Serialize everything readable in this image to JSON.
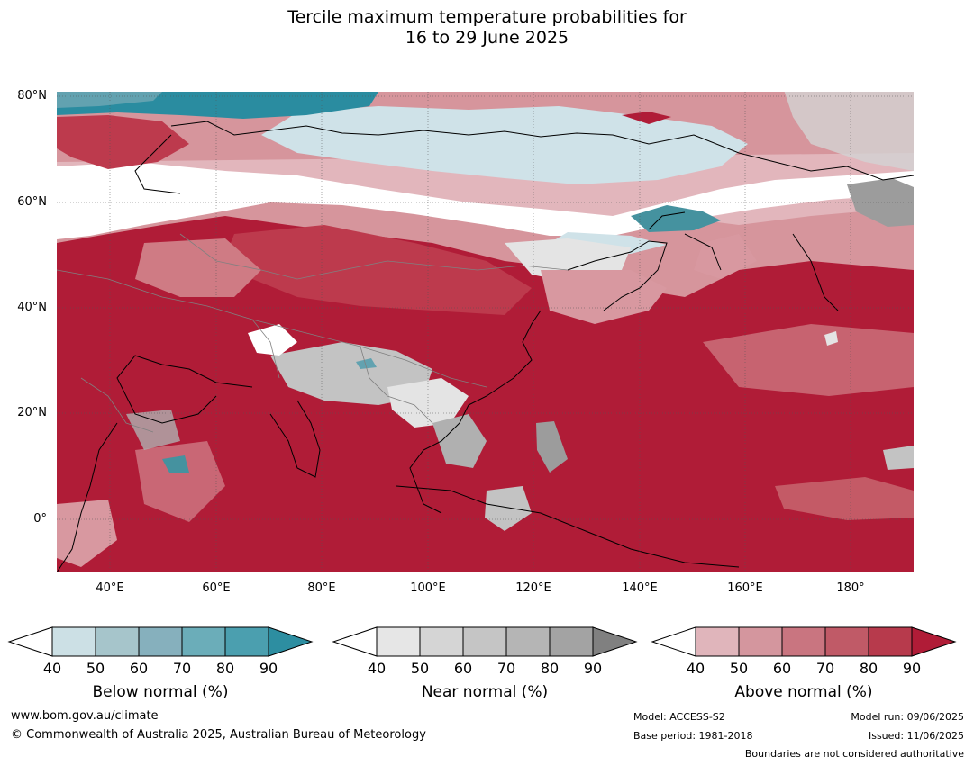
{
  "title": {
    "line1": "Tercile maximum temperature probabilities for",
    "line2": "16 to 29 June 2025"
  },
  "map": {
    "lat_labels": [
      "80°N",
      "60°N",
      "40°N",
      "20°N",
      "0°"
    ],
    "lon_labels": [
      "40°E",
      "60°E",
      "80°E",
      "100°E",
      "120°E",
      "140°E",
      "160°E",
      "180°"
    ],
    "colors": {
      "above_90": "#b01c37",
      "above_80": "#bd3a4d",
      "above_70": "#c45a66",
      "above_60": "#cf7b84",
      "above_50": "#d898a0",
      "above_40": "#e2b6bc",
      "near_40": "#e4e4e4",
      "near_50": "#d3d3d3",
      "near_60": "#c3c3c3",
      "near_70": "#b0b0b0",
      "near_80": "#9c9c9c",
      "below_40": "#cfe2e8",
      "below_50": "#a9c8d0",
      "below_60": "#85b1bd",
      "below_70": "#62a2b0",
      "below_80": "#45929f",
      "below_90": "#2a8ca0",
      "coast": "#000000",
      "border": "#808080"
    }
  },
  "legend": {
    "below": {
      "title": "Below normal (%)",
      "ticks": [
        "40",
        "50",
        "60",
        "70",
        "80",
        "90"
      ],
      "colors": [
        "#cce0e5",
        "#a6c5cb",
        "#86b0bd",
        "#6badb9",
        "#4b9faf",
        "#2d8ea1"
      ]
    },
    "near": {
      "title": "Near normal (%)",
      "ticks": [
        "40",
        "50",
        "60",
        "70",
        "80",
        "90"
      ],
      "colors": [
        "#e6e6e6",
        "#d5d5d5",
        "#c5c5c5",
        "#b5b5b5",
        "#a3a3a3",
        "#808080"
      ]
    },
    "above": {
      "title": "Above normal (%)",
      "ticks": [
        "40",
        "50",
        "60",
        "70",
        "80",
        "90"
      ],
      "colors": [
        "#e0b5bb",
        "#d4969e",
        "#c97580",
        "#c05a67",
        "#b73a4c",
        "#b01c37"
      ]
    }
  },
  "footer": {
    "url": "www.bom.gov.au/climate",
    "copyright": "© Commonwealth of Australia 2025, Australian Bureau of Meteorology",
    "model": "Model: ACCESS-S2",
    "base_period": "Base period: 1981-2018",
    "model_run": "Model run: 09/06/2025",
    "issued": "Issued: 11/06/2025",
    "boundaries": "Boundaries are not considered authoritative"
  }
}
